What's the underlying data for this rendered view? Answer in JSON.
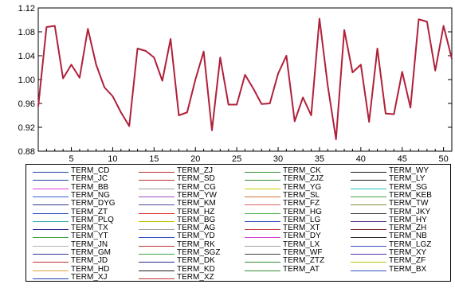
{
  "chart_data": {
    "type": "line",
    "ylim": [
      0.88,
      1.12
    ],
    "yticks": [
      "0.88",
      "0.92",
      "0.96",
      "1.00",
      "1.04",
      "1.08",
      "1.12"
    ],
    "xlim": [
      1,
      51
    ],
    "xticks": [
      "5",
      "10",
      "15",
      "20",
      "25",
      "30",
      "35",
      "40",
      "45",
      "50"
    ],
    "grid": false,
    "legend_position": "bottom",
    "line_color": "#b0203a",
    "series": [
      {
        "x": [
          1,
          2,
          3,
          4,
          5,
          6,
          7,
          8,
          9,
          10,
          11,
          12,
          13,
          14,
          15,
          16,
          17,
          18,
          19,
          20,
          21,
          22,
          23,
          24,
          25,
          26,
          27,
          28,
          29,
          30,
          31,
          32,
          33,
          34,
          35,
          36,
          37,
          38,
          39,
          40,
          41,
          42,
          43,
          44,
          45,
          46,
          47,
          48,
          49,
          50,
          51
        ],
        "values": [
          0.955,
          1.088,
          1.09,
          1.002,
          1.025,
          1.003,
          1.085,
          1.025,
          0.987,
          0.972,
          0.945,
          0.922,
          1.052,
          1.048,
          1.037,
          0.998,
          1.068,
          0.94,
          0.945,
          1.0,
          1.047,
          0.915,
          1.037,
          0.958,
          0.958,
          1.008,
          0.985,
          0.959,
          0.96,
          1.01,
          1.04,
          0.93,
          0.97,
          0.94,
          1.102,
          0.99,
          0.9,
          1.083,
          1.012,
          1.025,
          0.929,
          1.052,
          0.943,
          0.942,
          1.013,
          0.953,
          1.101,
          1.097,
          1.015,
          1.09,
          1.035
        ]
      }
    ],
    "legend": [
      {
        "label": "TERM_CD",
        "color": "#1f3fa6"
      },
      {
        "label": "TERM_ZJ",
        "color": "#c03030"
      },
      {
        "label": "TERM_CK",
        "color": "#2e8b2e"
      },
      {
        "label": "TERM_WY",
        "color": "#1a1a1a"
      },
      {
        "label": "TERM_JC",
        "color": "#1f3fa6"
      },
      {
        "label": "TERM_SD",
        "color": "#c03030"
      },
      {
        "label": "TERM_ZJZ",
        "color": "#2e8b2e"
      },
      {
        "label": "TERM_LY",
        "color": "#1a1a1a"
      },
      {
        "label": "TERM_BB",
        "color": "#e040e0"
      },
      {
        "label": "TERM_CG",
        "color": "#999999"
      },
      {
        "label": "TERM_YG",
        "color": "#cccc00"
      },
      {
        "label": "TERM_SG",
        "color": "#20c0c0"
      },
      {
        "label": "TERM_NG",
        "color": "#3b5fd6"
      },
      {
        "label": "TERM_YW",
        "color": "#9a4fbf"
      },
      {
        "label": "TERM_SL",
        "color": "#d07030"
      },
      {
        "label": "TERM_KEB",
        "color": "#40a040"
      },
      {
        "label": "TERM_DYG",
        "color": "#2a3a8a"
      },
      {
        "label": "TERM_KM",
        "color": "#4a4aa0"
      },
      {
        "label": "TERM_FZ",
        "color": "#e06060"
      },
      {
        "label": "TERM_TW",
        "color": "#8a8a3a"
      },
      {
        "label": "TERM_ZT",
        "color": "#3050c0"
      },
      {
        "label": "TERM_HZ",
        "color": "#e03030"
      },
      {
        "label": "TERM_HG",
        "color": "#50b050"
      },
      {
        "label": "TERM_JKY",
        "color": "#404040"
      },
      {
        "label": "TERM_PLQ",
        "color": "#30b0b0"
      },
      {
        "label": "TERM_BG",
        "color": "#c0c000"
      },
      {
        "label": "TERM_LG",
        "color": "#3050c0"
      },
      {
        "label": "TERM_HY",
        "color": "#603080"
      },
      {
        "label": "TERM_TX",
        "color": "#2a2a8a"
      },
      {
        "label": "TERM_AG",
        "color": "#a0a0a0"
      },
      {
        "label": "TERM_XT",
        "color": "#c04040"
      },
      {
        "label": "TERM_ZH",
        "color": "#7a2a2a"
      },
      {
        "label": "TERM_YT",
        "color": "#40a040"
      },
      {
        "label": "TERM_YD",
        "color": "#3050c0"
      },
      {
        "label": "TERM_DY",
        "color": "#d040d0"
      },
      {
        "label": "TERM_NB",
        "color": "#2a2a2a"
      },
      {
        "label": "TERM_JN",
        "color": "#b0b0b0"
      },
      {
        "label": "TERM_RK",
        "color": "#c03030"
      },
      {
        "label": "TERM_LX",
        "color": "#a0a0a0"
      },
      {
        "label": "TERM_LGZ",
        "color": "#3050c0"
      },
      {
        "label": "TERM_GM",
        "color": "#2a3a8a"
      },
      {
        "label": "TERM_SGZ",
        "color": "#40a040"
      },
      {
        "label": "TERM_WF",
        "color": "#404040"
      },
      {
        "label": "TERM_XY",
        "color": "#5030a0"
      },
      {
        "label": "TERM_JD",
        "color": "#c03030"
      },
      {
        "label": "TERM_DK",
        "color": "#2a2a8a"
      },
      {
        "label": "TERM_ZTZ",
        "color": "#2e8b2e"
      },
      {
        "label": "TERM_ZF",
        "color": "#c0c000"
      },
      {
        "label": "TERM_HD",
        "color": "#e0a040"
      },
      {
        "label": "TERM_KD",
        "color": "#1a1a1a"
      },
      {
        "label": "TERM_AT",
        "color": "#2e8b2e"
      },
      {
        "label": "TERM_BX",
        "color": "#3050c0"
      },
      {
        "label": "TERM_XJ",
        "color": "#1f3fa6"
      },
      {
        "label": "TERM_XZ",
        "color": "#c03030"
      }
    ]
  }
}
